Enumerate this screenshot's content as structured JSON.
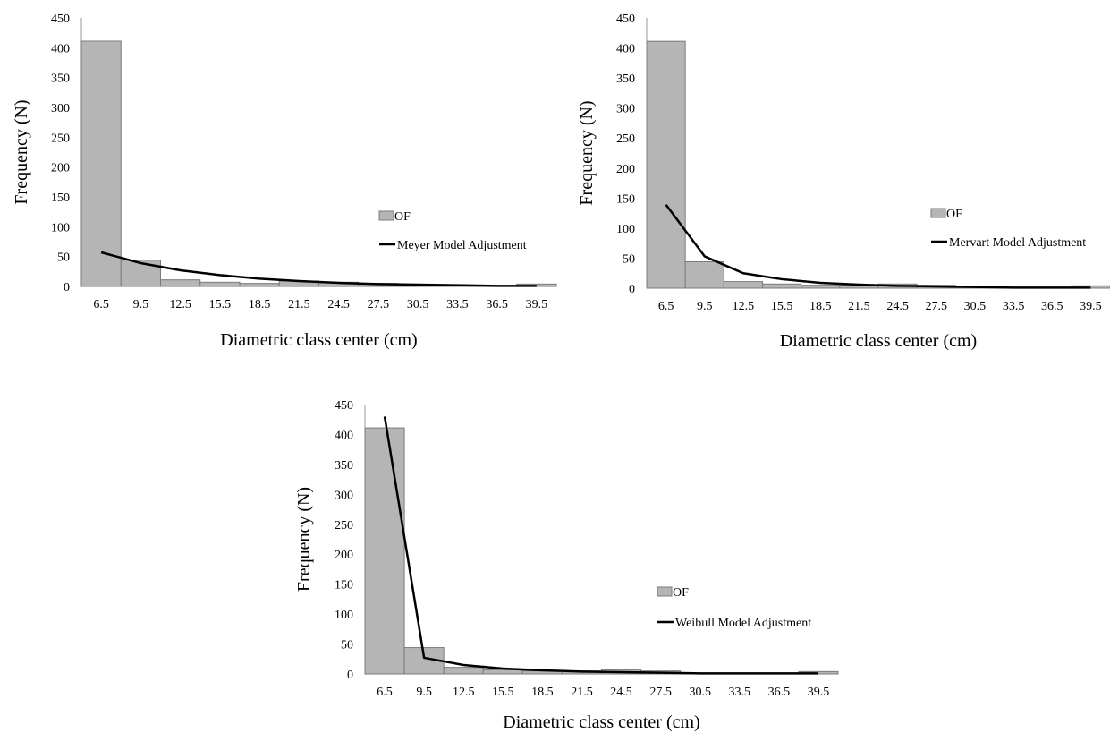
{
  "style": {
    "bar_fill": "#b5b5b5",
    "bar_stroke": "#7a7a7a",
    "line_color": "#000000",
    "axis_color": "#999999"
  },
  "chart_data": [
    {
      "type": "bar",
      "categories": [
        "6.5",
        "9.5",
        "12.5",
        "15.5",
        "18.5",
        "21.5",
        "24.5",
        "27.5",
        "30.5",
        "33.5",
        "36.5",
        "39.5"
      ],
      "xlabel": "Diametric class center (cm)",
      "ylabel": "Frequency (N)",
      "ylim": [
        0,
        450
      ],
      "yticks": [
        0,
        50,
        100,
        150,
        200,
        250,
        300,
        350,
        400,
        450
      ],
      "legend_position": "right",
      "series": [
        {
          "name": "OF",
          "kind": "bar",
          "values": [
            411,
            44,
            11,
            7,
            5,
            9,
            7,
            5,
            1,
            1,
            1,
            4
          ]
        },
        {
          "name": "Meyer Model Adjustment",
          "kind": "line",
          "values": [
            57,
            39,
            27,
            19,
            13,
            9,
            6,
            4,
            3,
            2,
            1,
            1
          ]
        }
      ]
    },
    {
      "type": "bar",
      "categories": [
        "6.5",
        "9.5",
        "12.5",
        "15.5",
        "18.5",
        "21.5",
        "24.5",
        "27.5",
        "30.5",
        "33.5",
        "36.5",
        "39.5"
      ],
      "xlabel": "Diametric class center (cm)",
      "ylabel": "Frequency (N)",
      "ylim": [
        0,
        450
      ],
      "yticks": [
        0,
        50,
        100,
        150,
        200,
        250,
        300,
        350,
        400,
        450
      ],
      "legend_position": "right",
      "series": [
        {
          "name": "OF",
          "kind": "bar",
          "values": [
            411,
            44,
            11,
            7,
            5,
            5,
            7,
            5,
            1,
            1,
            1,
            4
          ]
        },
        {
          "name": "Mervart Model Adjustment",
          "kind": "line",
          "values": [
            139,
            53,
            25,
            15,
            9,
            6,
            4,
            3,
            2,
            1,
            1,
            1
          ]
        }
      ]
    },
    {
      "type": "bar",
      "categories": [
        "6.5",
        "9.5",
        "12.5",
        "15.5",
        "18.5",
        "21.5",
        "24.5",
        "27.5",
        "30.5",
        "33.5",
        "36.5",
        "39.5"
      ],
      "xlabel": "Diametric class center (cm)",
      "ylabel": "Frequency (N)",
      "ylim": [
        0,
        450
      ],
      "yticks": [
        0,
        50,
        100,
        150,
        200,
        250,
        300,
        350,
        400,
        450
      ],
      "legend_position": "right",
      "series": [
        {
          "name": "OF",
          "kind": "bar",
          "values": [
            411,
            44,
            11,
            7,
            5,
            5,
            7,
            5,
            1,
            1,
            1,
            4
          ]
        },
        {
          "name": "Weibull Model Adjustment",
          "kind": "line",
          "values": [
            430,
            27,
            15,
            9,
            6,
            4,
            3,
            2,
            1,
            1,
            1,
            1
          ]
        }
      ]
    }
  ]
}
